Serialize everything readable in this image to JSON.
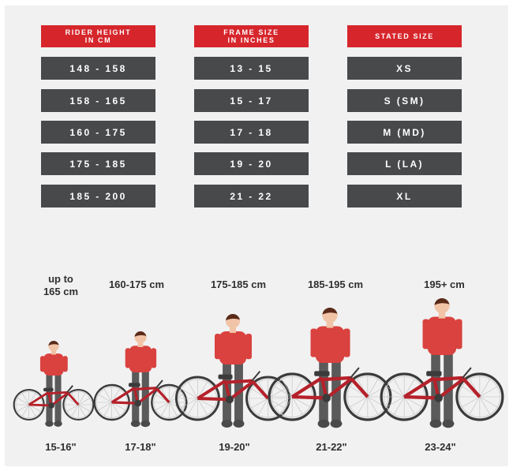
{
  "table": {
    "headers": [
      "RIDER HEIGHT\nIN CM",
      "FRAME SIZE\nIN INCHES",
      "STATED SIZE"
    ],
    "rows": [
      [
        "148 - 158",
        "13 - 15",
        "XS"
      ],
      [
        "158 - 165",
        "15 - 17",
        "S (SM)"
      ],
      [
        "160 - 175",
        "17 - 18",
        "M (MD)"
      ],
      [
        "175 - 185",
        "19 - 20",
        "L (LA)"
      ],
      [
        "185 - 200",
        "21 - 22",
        "XL"
      ]
    ]
  },
  "riders": [
    {
      "height_label": "up to\n165 cm",
      "frame_label": "15-16\""
    },
    {
      "height_label": "160-175 cm",
      "frame_label": "17-18\""
    },
    {
      "height_label": "175-185 cm",
      "frame_label": "19-20\""
    },
    {
      "height_label": "185-195 cm",
      "frame_label": "21-22\""
    },
    {
      "height_label": "195+ cm",
      "frame_label": "23-24\""
    }
  ],
  "colors": {
    "header_red": "#d6262c",
    "row_gray": "#47494b",
    "shirt_red": "#d9423f",
    "bike_frame": "#b5212a",
    "pants_gray": "#5a5a5a",
    "skin": "#f2c4a7",
    "hair": "#5a2b1a"
  }
}
